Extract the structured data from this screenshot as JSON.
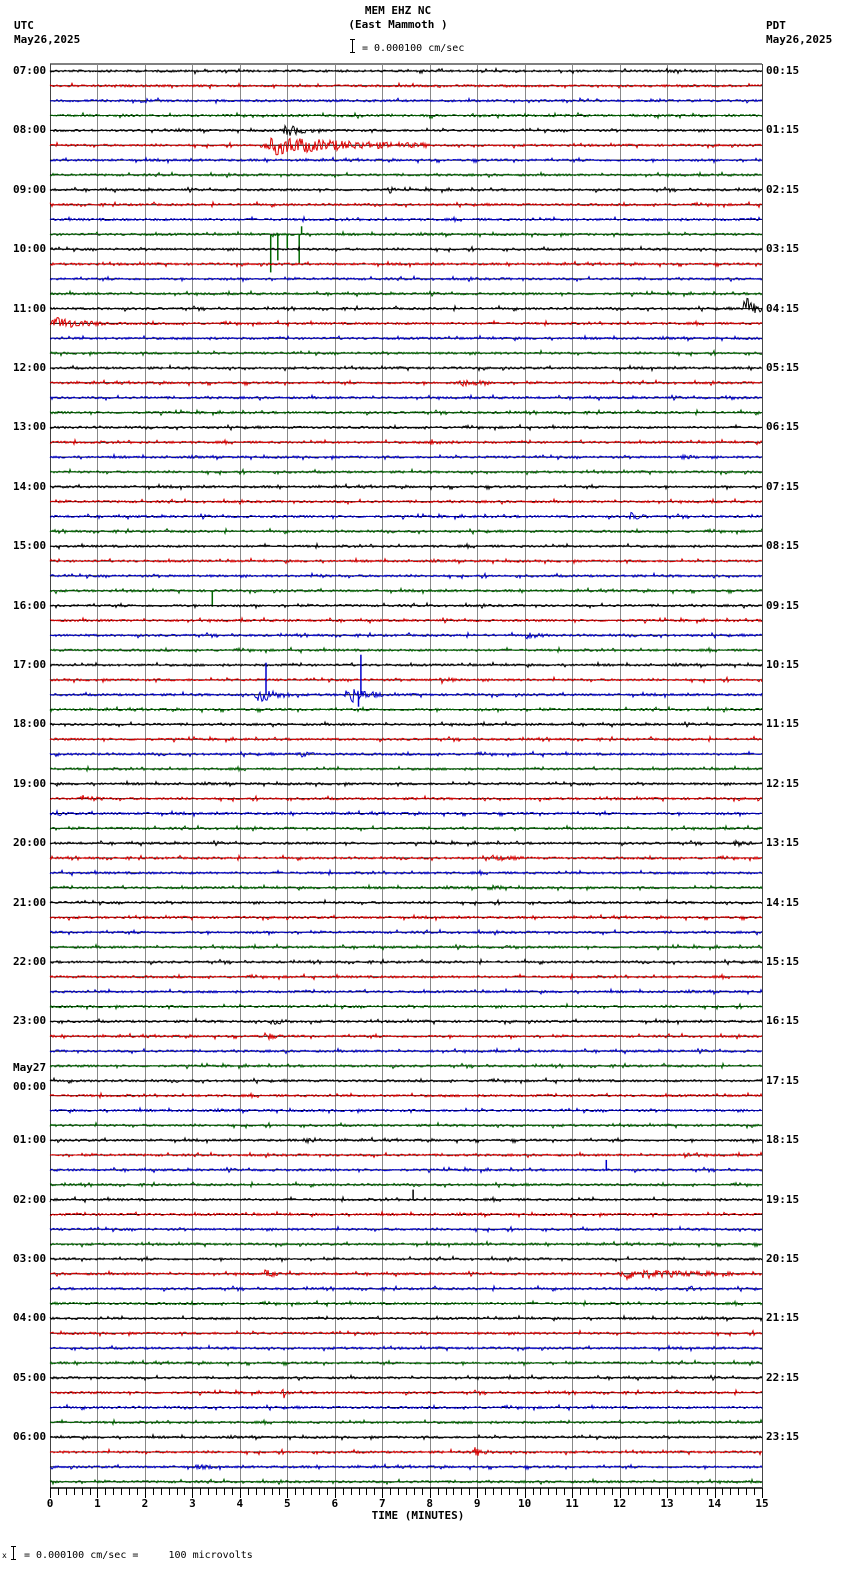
{
  "header": {
    "station": "MEM EHZ NC",
    "location": "(East Mammoth )",
    "scale_text": "= 0.000100 cm/sec",
    "left_tz": "UTC",
    "left_date": "May26,2025",
    "right_tz": "PDT",
    "right_date": "May26,2025"
  },
  "footer": {
    "prefix": "x",
    "scale_text": "= 0.000100 cm/sec =     100 microvolts"
  },
  "date_change_label": "May27",
  "trace_colors": [
    "#000000",
    "#dd0000",
    "#0000cc",
    "#006600"
  ],
  "grid_color": "#888888",
  "chart_data": {
    "type": "line",
    "title": "MEM EHZ NC (East Mammoth )",
    "subtitle": "= 0.000100 cm/sec",
    "xlabel": "TIME (MINUTES)",
    "ylabel": "",
    "x_ticks": [
      "0",
      "1",
      "2",
      "3",
      "4",
      "5",
      "6",
      "7",
      "8",
      "9",
      "10",
      "11",
      "12",
      "13",
      "14",
      "15"
    ],
    "xlim": [
      0,
      15
    ],
    "grid": true,
    "traces_per_hour": 4,
    "minutes_per_trace": 15,
    "utc_labels": [
      "07:00",
      "08:00",
      "09:00",
      "10:00",
      "11:00",
      "12:00",
      "13:00",
      "14:00",
      "15:00",
      "16:00",
      "17:00",
      "18:00",
      "19:00",
      "20:00",
      "21:00",
      "22:00",
      "23:00",
      "00:00",
      "01:00",
      "02:00",
      "03:00",
      "04:00",
      "05:00",
      "06:00"
    ],
    "pdt_labels": [
      "00:15",
      "01:15",
      "02:15",
      "03:15",
      "04:15",
      "05:15",
      "06:15",
      "07:15",
      "08:15",
      "09:15",
      "10:15",
      "11:15",
      "12:15",
      "13:15",
      "14:15",
      "15:15",
      "16:15",
      "17:15",
      "18:15",
      "19:15",
      "20:15",
      "21:15",
      "22:15",
      "23:15"
    ],
    "events": [
      {
        "trace": 5,
        "start_min": 4.4,
        "end_min": 8.0,
        "amp": 9,
        "note": "red coda burst 08:15"
      },
      {
        "trace": 4,
        "start_min": 4.9,
        "end_min": 5.6,
        "amp": 6
      },
      {
        "trace": 8,
        "start_min": 7.1,
        "end_min": 7.3,
        "amp": 4
      },
      {
        "trace": 11,
        "start_min": 4.6,
        "end_min": 5.4,
        "amp": 0,
        "spike": [
          {
            "at": 4.65,
            "h": -38
          },
          {
            "at": 4.8,
            "h": -26
          },
          {
            "at": 5.25,
            "h": -30
          },
          {
            "at": 5.0,
            "h": -14
          },
          {
            "at": 5.3,
            "h": 8
          }
        ]
      },
      {
        "trace": 16,
        "start_min": 14.6,
        "end_min": 15.0,
        "amp": 14
      },
      {
        "trace": 17,
        "start_min": 0.0,
        "end_min": 1.2,
        "amp": 6
      },
      {
        "trace": 21,
        "start_min": 8.5,
        "end_min": 9.6,
        "amp": 3
      },
      {
        "trace": 22,
        "start_min": 14.2,
        "end_min": 14.6,
        "amp": 2
      },
      {
        "trace": 25,
        "start_min": 8.0,
        "end_min": 8.5,
        "amp": 3
      },
      {
        "trace": 26,
        "start_min": 13.3,
        "end_min": 13.7,
        "amp": 2
      },
      {
        "trace": 30,
        "start_min": 12.2,
        "end_min": 12.6,
        "amp": 4
      },
      {
        "trace": 35,
        "start_min": 3.4,
        "end_min": 3.45,
        "amp": 0,
        "spike": [
          {
            "at": 3.42,
            "h": -16
          }
        ]
      },
      {
        "trace": 34,
        "start_min": 5.5,
        "end_min": 5.9,
        "amp": 2
      },
      {
        "trace": 38,
        "start_min": 10.0,
        "end_min": 10.5,
        "amp": 3
      },
      {
        "trace": 41,
        "start_min": 8.2,
        "end_min": 8.6,
        "amp": 3
      },
      {
        "trace": 42,
        "start_min": 4.3,
        "end_min": 5.1,
        "amp": 8,
        "spike": [
          {
            "at": 4.55,
            "h": 32
          }
        ]
      },
      {
        "trace": 42,
        "start_min": 6.2,
        "end_min": 7.0,
        "amp": 9,
        "spike": [
          {
            "at": 6.5,
            "h": -12
          },
          {
            "at": 6.55,
            "h": 40
          }
        ]
      },
      {
        "trace": 46,
        "start_min": 5.2,
        "end_min": 5.6,
        "amp": 3
      },
      {
        "trace": 49,
        "start_min": 0.6,
        "end_min": 1.2,
        "amp": 3
      },
      {
        "trace": 50,
        "start_min": 0.1,
        "end_min": 0.4,
        "amp": 3
      },
      {
        "trace": 52,
        "start_min": 14.4,
        "end_min": 14.8,
        "amp": 3
      },
      {
        "trace": 53,
        "start_min": 9.2,
        "end_min": 10.0,
        "amp": 3
      },
      {
        "trace": 55,
        "start_min": 9.2,
        "end_min": 9.8,
        "amp": 2
      },
      {
        "trace": 59,
        "start_min": 9.6,
        "end_min": 10.0,
        "amp": 2
      },
      {
        "trace": 64,
        "start_min": 4.6,
        "end_min": 5.2,
        "amp": 3
      },
      {
        "trace": 65,
        "start_min": 4.5,
        "end_min": 4.9,
        "amp": 4
      },
      {
        "trace": 72,
        "start_min": 5.4,
        "end_min": 5.8,
        "amp": 3
      },
      {
        "trace": 73,
        "start_min": 13.3,
        "end_min": 13.8,
        "amp": 3
      },
      {
        "trace": 74,
        "start_min": 11.7,
        "end_min": 11.75,
        "amp": 0,
        "spike": [
          {
            "at": 11.72,
            "h": 10
          }
        ]
      },
      {
        "trace": 76,
        "start_min": 7.6,
        "end_min": 7.7,
        "amp": 0,
        "spike": [
          {
            "at": 7.65,
            "h": 10
          }
        ]
      },
      {
        "trace": 79,
        "start_min": 9.2,
        "end_min": 9.3,
        "amp": 3
      },
      {
        "trace": 81,
        "start_min": 11.9,
        "end_min": 14.5,
        "amp": 5
      },
      {
        "trace": 81,
        "start_min": 4.5,
        "end_min": 4.9,
        "amp": 4
      },
      {
        "trace": 82,
        "start_min": 13.4,
        "end_min": 13.8,
        "amp": 3
      },
      {
        "trace": 89,
        "start_min": 4.9,
        "end_min": 5.1,
        "amp": 6
      },
      {
        "trace": 93,
        "start_min": 8.9,
        "end_min": 9.4,
        "amp": 4
      },
      {
        "trace": 94,
        "start_min": 3.0,
        "end_min": 3.6,
        "amp": 2
      }
    ]
  }
}
